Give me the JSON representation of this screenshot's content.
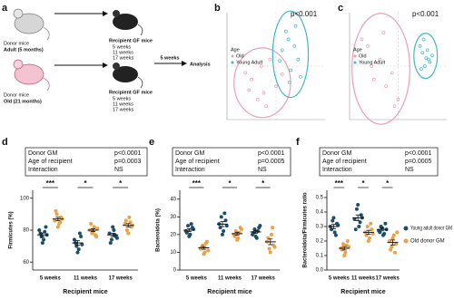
{
  "panel_labels": [
    "a",
    "b",
    "c",
    "d",
    "e",
    "f"
  ],
  "diagram": {
    "donors": [
      {
        "label": "Donor mice",
        "age": "Adult (5 months)"
      },
      {
        "label": "Donor mice",
        "age": "Old (21 months)"
      }
    ],
    "recipients": [
      {
        "label": "Recipient GF mice",
        "times": [
          "5 weeks",
          "11 weeks",
          "17 weeks"
        ]
      },
      {
        "label": "Recipient GF mice",
        "times": [
          "5 weeks",
          "11 weeks",
          "17 weeks"
        ]
      }
    ],
    "arrow_label": "5 weeks",
    "analysis": "Analysis"
  },
  "chart_data": [
    {
      "type": "scatter",
      "pvalue": "p<0.001",
      "legend_title": "Age",
      "xlim": [
        -4,
        4
      ],
      "ylim": [
        -4,
        4
      ],
      "series": [
        {
          "name": "Old",
          "color": "#e8a0b4",
          "x": [
            -2,
            -1,
            -0.5,
            -2.5,
            -1.5,
            0,
            -1.2,
            -0.8,
            -2.2,
            0.5
          ],
          "y": [
            -1,
            -2,
            0.5,
            -0.5,
            -2.5,
            -1.5,
            0,
            -3,
            -1.8,
            -0.6
          ]
        },
        {
          "name": "Young Adult",
          "color": "#3fb8c4",
          "x": [
            1,
            0.5,
            1.8,
            1.2,
            0.8,
            1.5,
            2,
            0.3,
            1.1,
            1.6
          ],
          "y": [
            2,
            1.2,
            0.5,
            -0.3,
            2.6,
            1.5,
            -0.8,
            0.4,
            -1.2,
            3
          ]
        }
      ]
    },
    {
      "type": "scatter",
      "pvalue": "p<0.001",
      "legend_title": "Age",
      "xlim": [
        -4,
        4
      ],
      "ylim": [
        -4,
        4
      ],
      "series": [
        {
          "name": "Old",
          "color": "#e8a0b4",
          "x": [
            -2.5,
            -1.5,
            -0.5,
            -3,
            -2,
            -1,
            0,
            -2.2,
            -1.2,
            -0.3
          ],
          "y": [
            1.5,
            0.5,
            -0.5,
            2,
            -1,
            -1.5,
            -2.5,
            0,
            2.5,
            -3
          ]
        },
        {
          "name": "Young Adult",
          "color": "#3fb8c4",
          "x": [
            2,
            2.5,
            1.8,
            2.2,
            2.8,
            2.4,
            1.9,
            2.6,
            2.1,
            2.3
          ],
          "y": [
            1,
            0.5,
            1.5,
            0,
            0.8,
            1.2,
            -0.2,
            0.3,
            2,
            0.6
          ]
        }
      ]
    },
    {
      "type": "dot",
      "ylabel": "Firmicutes (%)",
      "xlabel": "Recipient mice",
      "categories": [
        "5 weeks",
        "11 weeks",
        "17 weeks"
      ],
      "ylim": [
        55,
        105
      ],
      "yticks": [
        60,
        80,
        100
      ],
      "significance": [
        "***",
        "*",
        "*"
      ],
      "stats": [
        [
          "Donor GM",
          "p<0.0001"
        ],
        [
          "Age of recipient",
          "p=0.0003"
        ],
        [
          "Interaction",
          "NS"
        ]
      ],
      "series": [
        {
          "color": "#1d4f68",
          "values": [
            [
              80,
              76,
              74,
              82,
              78,
              72,
              79,
              77
            ],
            [
              74,
              70,
              68,
              76,
              72,
              66,
              78,
              71
            ],
            [
              78,
              74,
              80,
              76,
              72,
              82,
              77,
              75
            ]
          ],
          "means": [
            77,
            72,
            77
          ],
          "sem": [
            1.2,
            1.4,
            1.1
          ]
        },
        {
          "color": "#f0a040",
          "values": [
            [
              86,
              90,
              84,
              88,
              92,
              82,
              85,
              87
            ],
            [
              80,
              78,
              82,
              76,
              84,
              79,
              77,
              81
            ],
            [
              84,
              80,
              88,
              82,
              86,
              78,
              85,
              83
            ]
          ],
          "means": [
            87,
            80,
            83
          ],
          "sem": [
            1.1,
            0.9,
            1.1
          ]
        }
      ]
    },
    {
      "type": "dot",
      "ylabel": "Bacteroidota (%)",
      "xlabel": "Recipient mice",
      "categories": [
        "5 weeks",
        "11 weeks",
        "17 weeks"
      ],
      "ylim": [
        0,
        45
      ],
      "yticks": [
        0,
        10,
        20,
        30,
        40
      ],
      "significance": [
        "***",
        "*",
        "*"
      ],
      "stats": [
        [
          "Donor GM",
          "p<0.0001"
        ],
        [
          "Age of recipient",
          "p=0.0005"
        ],
        [
          "Interaction",
          "NS"
        ]
      ],
      "series": [
        {
          "color": "#1d4f68",
          "values": [
            [
              22,
              25,
              20,
              24,
              21,
              19,
              26,
              23
            ],
            [
              26,
              30,
              22,
              28,
              24,
              20,
              32,
              25
            ],
            [
              20,
              23,
              18,
              24,
              21,
              19,
              22,
              25
            ]
          ],
          "means": [
            22.5,
            25.9,
            21.5
          ],
          "sem": [
            0.8,
            1.4,
            0.8
          ]
        },
        {
          "color": "#f0a040",
          "values": [
            [
              12,
              14,
              10,
              16,
              13,
              9,
              15,
              11
            ],
            [
              20,
              22,
              18,
              24,
              19,
              17,
              21,
              23
            ],
            [
              16,
              12,
              20,
              14,
              18,
              10,
              24,
              13
            ]
          ],
          "means": [
            12.5,
            20.5,
            15.9
          ],
          "sem": [
            0.8,
            0.8,
            1.6
          ]
        }
      ]
    },
    {
      "type": "dot",
      "ylabel": "Bacteroidota/Firmicutes ratio",
      "xlabel": "Recipient mice",
      "categories": [
        "5 weeks",
        "11 weeks",
        "17 weeks"
      ],
      "ylim": [
        0,
        0.55
      ],
      "yticks": [
        {
          "value": 0,
          "label": "0.0"
        },
        0.1,
        0.2,
        0.3,
        0.4,
        0.5
      ],
      "significance": [
        "***",
        "*",
        "*"
      ],
      "stats": [
        [
          "Donor GM",
          "p<0.0001"
        ],
        [
          "Age of recipient",
          "p=0.0005"
        ],
        [
          "Interaction",
          "NS"
        ]
      ],
      "series": [
        {
          "name": "Young adult donor GM",
          "color": "#1d4f68",
          "values": [
            [
              0.3,
              0.34,
              0.26,
              0.32,
              0.28,
              0.36,
              0.24,
              0.31
            ],
            [
              0.35,
              0.42,
              0.3,
              0.38,
              0.28,
              0.45,
              0.33,
              0.36
            ],
            [
              0.27,
              0.3,
              0.24,
              0.32,
              0.26,
              0.29,
              0.25,
              0.28
            ]
          ],
          "means": [
            0.3,
            0.36,
            0.28
          ],
          "sem": [
            0.015,
            0.02,
            0.01
          ]
        },
        {
          "name": "Old donor GM",
          "color": "#f0a040",
          "values": [
            [
              0.15,
              0.18,
              0.12,
              0.2,
              0.14,
              0.1,
              0.17,
              0.16
            ],
            [
              0.26,
              0.3,
              0.22,
              0.28,
              0.24,
              0.2,
              0.32,
              0.25
            ],
            [
              0.2,
              0.16,
              0.24,
              0.18,
              0.14,
              0.22,
              0.12,
              0.26
            ]
          ],
          "means": [
            0.15,
            0.26,
            0.19
          ],
          "sem": [
            0.012,
            0.014,
            0.017
          ]
        }
      ]
    }
  ]
}
